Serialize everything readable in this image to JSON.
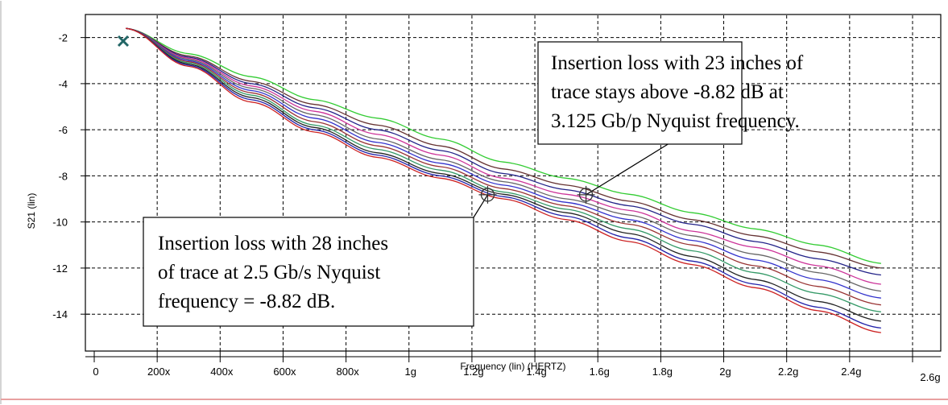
{
  "chart_data": {
    "type": "line",
    "xlabel": "Frequency (lin) (HERTZ)",
    "ylabel": "S21 (lin)",
    "xlim": [
      0,
      2600000000
    ],
    "ylim": [
      -15.6,
      -1.0
    ],
    "grid": true,
    "x_ticks": [
      {
        "value": 0,
        "label": "0"
      },
      {
        "value": 200000000,
        "label": "200x"
      },
      {
        "value": 400000000,
        "label": "400x"
      },
      {
        "value": 600000000,
        "label": "600x"
      },
      {
        "value": 800000000,
        "label": "800x"
      },
      {
        "value": 1000000000,
        "label": "1g"
      },
      {
        "value": 1200000000,
        "label": "1.2g"
      },
      {
        "value": 1400000000,
        "label": "1.4g"
      },
      {
        "value": 1600000000,
        "label": "1.6g"
      },
      {
        "value": 1800000000,
        "label": "1.8g"
      },
      {
        "value": 2000000000,
        "label": "2g"
      },
      {
        "value": 2200000000,
        "label": "2.2g"
      },
      {
        "value": 2400000000,
        "label": "2.4g"
      },
      {
        "value": 2600000000,
        "label": "2.6g"
      }
    ],
    "y_ticks": [
      {
        "value": -2,
        "label": "-2"
      },
      {
        "value": -4,
        "label": "-4"
      },
      {
        "value": -6,
        "label": "-6"
      },
      {
        "value": -8,
        "label": "-8"
      },
      {
        "value": -10,
        "label": "-10"
      },
      {
        "value": -12,
        "label": "-12"
      },
      {
        "value": -14,
        "label": "-14"
      }
    ],
    "x": [
      100000000,
      300000000,
      500000000,
      700000000,
      900000000,
      1100000000,
      1300000000,
      1500000000,
      1700000000,
      1900000000,
      2100000000,
      2300000000,
      2500000000
    ],
    "series": [
      {
        "color": "#33cc33",
        "values": [
          -1.6,
          -2.7,
          -3.7,
          -4.7,
          -5.5,
          -6.4,
          -7.4,
          -8.1,
          -8.8,
          -9.6,
          -10.3,
          -11.0,
          -11.8
        ]
      },
      {
        "color": "#663333",
        "values": [
          -1.6,
          -2.8,
          -3.9,
          -4.9,
          -5.8,
          -6.7,
          -7.7,
          -8.4,
          -9.1,
          -9.9,
          -10.6,
          -11.3,
          -12.0
        ]
      },
      {
        "color": "#222288",
        "values": [
          -1.6,
          -2.85,
          -4.0,
          -5.05,
          -6.0,
          -6.9,
          -7.9,
          -8.6,
          -9.3,
          -10.1,
          -10.85,
          -11.6,
          -12.3
        ]
      },
      {
        "color": "#cc3399",
        "values": [
          -1.6,
          -2.9,
          -4.1,
          -5.2,
          -6.2,
          -7.1,
          -8.1,
          -8.8,
          -9.5,
          -10.4,
          -11.1,
          -11.9,
          -12.7
        ]
      },
      {
        "color": "#666666",
        "values": [
          -1.6,
          -2.95,
          -4.2,
          -5.35,
          -6.4,
          -7.3,
          -8.25,
          -9.0,
          -9.7,
          -10.6,
          -11.4,
          -12.2,
          -13.0
        ]
      },
      {
        "color": "#3333cc",
        "values": [
          -1.6,
          -3.0,
          -4.3,
          -5.5,
          -6.55,
          -7.45,
          -8.4,
          -9.15,
          -9.9,
          -10.8,
          -11.65,
          -12.5,
          -13.3
        ]
      },
      {
        "color": "#993333",
        "values": [
          -1.6,
          -3.05,
          -4.4,
          -5.65,
          -6.7,
          -7.6,
          -8.55,
          -9.3,
          -10.1,
          -11.0,
          -11.9,
          -12.8,
          -13.6
        ]
      },
      {
        "color": "#339966",
        "values": [
          -1.6,
          -3.1,
          -4.5,
          -5.8,
          -6.85,
          -7.75,
          -8.7,
          -9.45,
          -10.3,
          -11.25,
          -12.2,
          -13.1,
          -13.9
        ]
      },
      {
        "color": "#222222",
        "values": [
          -1.6,
          -3.15,
          -4.6,
          -5.9,
          -7.0,
          -7.9,
          -8.8,
          -9.6,
          -10.5,
          -11.5,
          -12.5,
          -13.45,
          -14.3
        ]
      },
      {
        "color": "#2222aa",
        "values": [
          -1.6,
          -3.2,
          -4.7,
          -6.0,
          -7.1,
          -8.0,
          -8.9,
          -9.75,
          -10.7,
          -11.7,
          -12.7,
          -13.7,
          -14.6
        ]
      },
      {
        "color": "#cc2222",
        "values": [
          -1.6,
          -3.25,
          -4.8,
          -6.1,
          -7.2,
          -8.1,
          -9.0,
          -9.9,
          -10.85,
          -11.85,
          -12.85,
          -13.85,
          -14.8
        ]
      }
    ],
    "annotations": [
      {
        "lines": [
          "Insertion loss with 23 inches of",
          "trace stays above -8.82 dB at",
          "3.125 Gb/p Nyquist frequency."
        ],
        "x": 1562500000,
        "y": -8.82
      },
      {
        "lines": [
          "Insertion loss with 28 inches",
          "of trace at 2.5 Gb/s Nyquist",
          "frequency = -8.82 dB."
        ],
        "x": 1250000000,
        "y": -8.82
      }
    ]
  }
}
